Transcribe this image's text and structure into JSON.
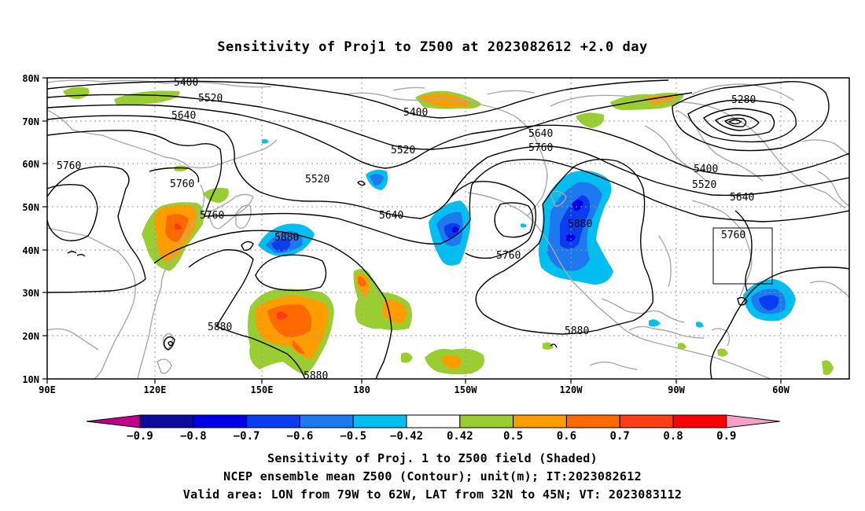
{
  "title": "Sensitivity of Proj1 to Z500 at 2023082612 +2.0 day",
  "map": {
    "projection": "cylindrical",
    "lon_range": [
      "90E",
      "50W"
    ],
    "lat_range": [
      "10N",
      "80N"
    ],
    "lat_labels": [
      "80N",
      "70N",
      "60N",
      "50N",
      "40N",
      "30N",
      "20N",
      "10N"
    ],
    "lon_labels": [
      "90E",
      "120E",
      "150E",
      "180",
      "150W",
      "120W",
      "90W",
      "60W"
    ],
    "gridlines": true,
    "valid_area_box": {
      "lon": [
        "79W",
        "62W"
      ],
      "lat": [
        "32N",
        "45N"
      ]
    },
    "contour_labels": [
      {
        "text": "5400"
      },
      {
        "text": "5520"
      },
      {
        "text": "5640"
      },
      {
        "text": "5760"
      },
      {
        "text": "5760"
      },
      {
        "text": "5760"
      },
      {
        "text": "5880"
      },
      {
        "text": "5880"
      },
      {
        "text": "5880"
      },
      {
        "text": "5400"
      },
      {
        "text": "5520"
      },
      {
        "text": "5520"
      },
      {
        "text": "5640"
      },
      {
        "text": "5640"
      },
      {
        "text": "5760"
      },
      {
        "text": "5760"
      },
      {
        "text": "5880"
      },
      {
        "text": "5880"
      },
      {
        "text": "5280"
      },
      {
        "text": "5400"
      },
      {
        "text": "5520"
      },
      {
        "text": "5640"
      },
      {
        "text": "5760"
      }
    ]
  },
  "colorbar": {
    "labels": [
      "-0.9",
      "-0.8",
      "-0.7",
      "-0.6",
      "-0.5",
      "-0.42",
      "0.42",
      "0.5",
      "0.6",
      "0.7",
      "0.8",
      "0.9"
    ],
    "colors": [
      "#c0008c",
      "#0a0a9c",
      "#0000e6",
      "#0a3cf0",
      "#1e78f0",
      "#00bef0",
      "#ffffff",
      "#9acd32",
      "#ff9d00",
      "#ff6a00",
      "#ff3c14",
      "#ff0000",
      "#f5a0c8"
    ]
  },
  "captions": {
    "line1": "Sensitivity of Proj. 1 to Z500 field (Shaded)",
    "line2": "NCEP ensemble mean Z500 (Contour); unit(m); IT:2023082612",
    "line3": "Valid area: LON from 79W to 62W, LAT from 32N to 45N; VT: 2023083112"
  }
}
